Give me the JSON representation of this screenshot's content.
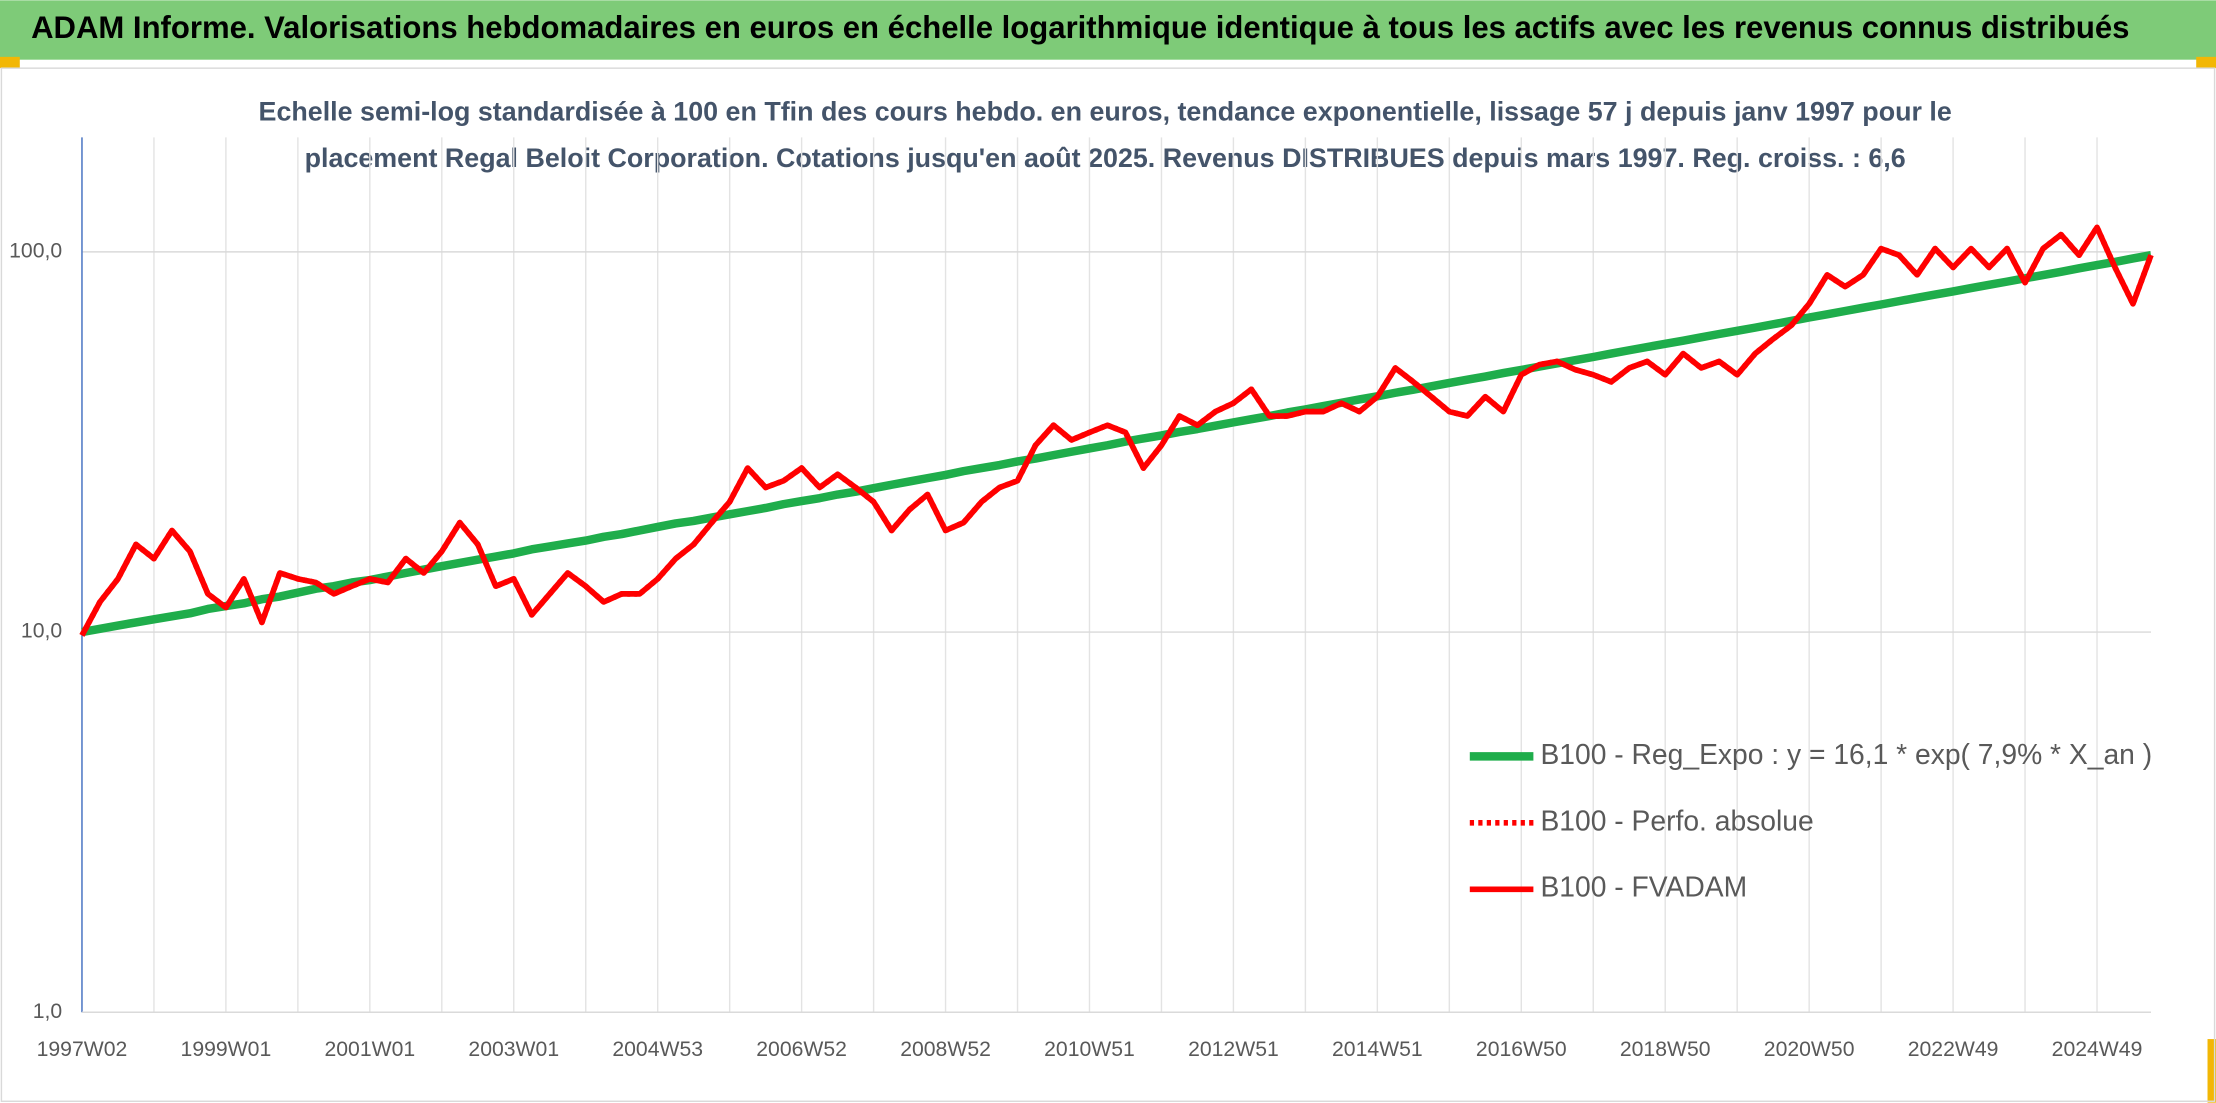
{
  "header": {
    "title": "ADAM Informe. Valorisations hebdomadaires en euros en échelle logarithmique identique à tous les actifs avec les revenus connus distribués"
  },
  "chart_data": {
    "type": "line",
    "title": [
      "Echelle semi-log standardisée à 100 en Tfin des cours hebdo. en euros, tendance exponentielle, lissage 57 j depuis janv 1997 pour le",
      "placement Regal Beloit Corporation. Cotations jusqu'en août 2025. Revenus DISTRIBUES depuis mars 1997. Reg. croiss. : 6,6"
    ],
    "log_scale": true,
    "grid": true,
    "legend": "right",
    "ylim": [
      1,
      200
    ],
    "yticks": [
      {
        "value": 1,
        "label": "1,0"
      },
      {
        "value": 10,
        "label": "10,0"
      },
      {
        "value": 100,
        "label": "100,0"
      }
    ],
    "categories": [
      "1997W02",
      null,
      null,
      null,
      null,
      null,
      null,
      null,
      "1999W01",
      null,
      null,
      null,
      null,
      null,
      null,
      null,
      "2001W01",
      null,
      null,
      null,
      null,
      null,
      null,
      null,
      "2003W01",
      null,
      null,
      null,
      null,
      null,
      null,
      null,
      "2004W53",
      null,
      null,
      null,
      null,
      null,
      null,
      null,
      "2006W52",
      null,
      null,
      null,
      null,
      null,
      null,
      null,
      "2008W52",
      null,
      null,
      null,
      null,
      null,
      null,
      null,
      "2010W51",
      null,
      null,
      null,
      null,
      null,
      null,
      null,
      "2012W51",
      null,
      null,
      null,
      null,
      null,
      null,
      null,
      "2014W51",
      null,
      null,
      null,
      null,
      null,
      null,
      null,
      "2016W50",
      null,
      null,
      null,
      null,
      null,
      null,
      null,
      "2018W50",
      null,
      null,
      null,
      null,
      null,
      null,
      null,
      "2020W50",
      null,
      null,
      null,
      null,
      null,
      null,
      null,
      "2022W49",
      null,
      null,
      null,
      null,
      null,
      null,
      null,
      "2024W49",
      null,
      null,
      null
    ],
    "series": [
      {
        "name": "B100 - Reg_Expo : y = 16,1 * exp( 7,9% *  X_an )",
        "color": "#1fad4b",
        "style": "solid",
        "width": 6,
        "values": [
          10.0,
          10.2,
          10.4,
          10.6,
          10.8,
          11.0,
          11.2,
          11.5,
          11.7,
          11.9,
          12.2,
          12.4,
          12.7,
          13.0,
          13.2,
          13.5,
          13.7,
          14.0,
          14.3,
          14.6,
          14.9,
          15.2,
          15.5,
          15.8,
          16.1,
          16.5,
          16.8,
          17.1,
          17.4,
          17.8,
          18.1,
          18.5,
          18.9,
          19.3,
          19.6,
          20.0,
          20.4,
          20.8,
          21.2,
          21.7,
          22.1,
          22.5,
          23.0,
          23.4,
          23.9,
          24.4,
          24.9,
          25.4,
          25.9,
          26.5,
          27.0,
          27.5,
          28.1,
          28.6,
          29.2,
          29.8,
          30.4,
          31.0,
          31.7,
          32.3,
          32.9,
          33.6,
          34.2,
          34.9,
          35.6,
          36.3,
          37.0,
          37.8,
          38.5,
          39.3,
          40.1,
          40.9,
          41.7,
          42.6,
          43.4,
          44.3,
          45.2,
          46.1,
          47.0,
          48.0,
          48.9,
          49.9,
          50.9,
          51.9,
          52.9,
          54.0,
          55.1,
          56.2,
          57.3,
          58.4,
          59.6,
          60.8,
          62.0,
          63.2,
          64.5,
          65.8,
          67.2,
          68.5,
          69.9,
          71.3,
          72.7,
          74.2,
          75.7,
          77.2,
          78.7,
          80.3,
          81.9,
          83.5,
          85.2,
          86.9,
          88.6,
          90.5,
          92.3,
          94.1,
          96.1,
          98.0
        ]
      },
      {
        "name": "B100 - Perfo. absolue",
        "color": "#ff0000",
        "style": "dotted",
        "width": 4,
        "values": [
          9.8,
          12,
          13.8,
          17,
          15.6,
          18.5,
          16.3,
          12.6,
          11.6,
          13.8,
          10.6,
          14.3,
          13.8,
          13.5,
          12.6,
          13.2,
          13.8,
          13.5,
          15.6,
          14.3,
          16.3,
          19.4,
          17,
          13.2,
          13.8,
          11.1,
          12.6,
          14.3,
          13.2,
          12,
          12.6,
          12.6,
          13.8,
          15.6,
          17,
          19.4,
          22,
          27,
          24,
          25,
          27,
          24,
          26,
          24,
          22,
          18.5,
          21,
          23,
          18.5,
          19.4,
          22,
          24,
          25,
          31,
          35,
          32,
          33.5,
          35,
          33.5,
          27,
          31,
          37,
          35,
          38,
          40,
          43.5,
          37,
          37,
          38,
          38,
          40,
          38,
          41.6,
          49.5,
          45.5,
          41.6,
          38,
          37,
          41.6,
          38,
          47.5,
          50.5,
          51.5,
          49,
          47.5,
          45.5,
          49.5,
          51.5,
          47.5,
          54,
          49.5,
          51.5,
          47.5,
          54,
          59,
          64,
          73,
          87,
          81,
          87,
          102,
          98,
          87,
          102,
          91,
          102,
          91,
          102,
          83,
          102,
          111,
          98,
          116,
          91,
          73,
          98
        ]
      },
      {
        "name": "B100 - FVADAM",
        "color": "#ff0000",
        "style": "solid",
        "width": 4,
        "values": [
          9.8,
          12,
          13.8,
          17,
          15.6,
          18.5,
          16.3,
          12.6,
          11.6,
          13.8,
          10.6,
          14.3,
          13.8,
          13.5,
          12.6,
          13.2,
          13.8,
          13.5,
          15.6,
          14.3,
          16.3,
          19.4,
          17,
          13.2,
          13.8,
          11.1,
          12.6,
          14.3,
          13.2,
          12,
          12.6,
          12.6,
          13.8,
          15.6,
          17,
          19.4,
          22,
          27,
          24,
          25,
          27,
          24,
          26,
          24,
          22,
          18.5,
          21,
          23,
          18.5,
          19.4,
          22,
          24,
          25,
          31,
          35,
          32,
          33.5,
          35,
          33.5,
          27,
          31,
          37,
          35,
          38,
          40,
          43.5,
          37,
          37,
          38,
          38,
          40,
          38,
          41.6,
          49.5,
          45.5,
          41.6,
          38,
          37,
          41.6,
          38,
          47.5,
          50.5,
          51.5,
          49,
          47.5,
          45.5,
          49.5,
          51.5,
          47.5,
          54,
          49.5,
          51.5,
          47.5,
          54,
          59,
          64,
          73,
          87,
          81,
          87,
          102,
          98,
          87,
          102,
          91,
          102,
          91,
          102,
          83,
          102,
          111,
          98,
          116,
          91,
          73,
          98
        ]
      }
    ]
  }
}
